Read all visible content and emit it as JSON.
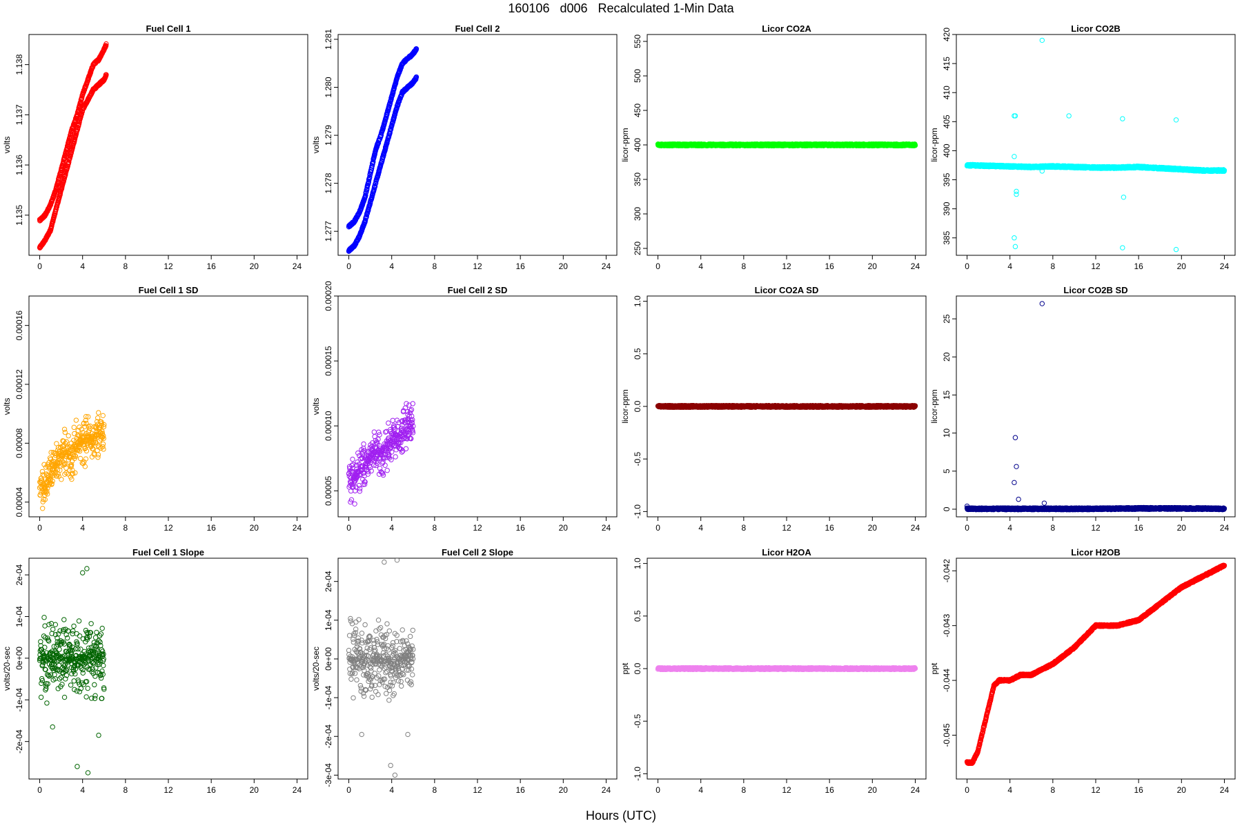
{
  "figure": {
    "title": "160106   d006   Recalculated 1-Min Data",
    "xlabel": "Hours (UTC)"
  },
  "chart_data": [
    {
      "id": "fc1",
      "type": "scatter",
      "title": "Fuel Cell 1",
      "ylabel": "volts",
      "color": "#ff0000",
      "xlim": [
        -1,
        25
      ],
      "ylim": [
        1.1342,
        1.1386
      ],
      "xticks": [
        0,
        4,
        8,
        12,
        16,
        20,
        24
      ],
      "yticks": [
        1.135,
        1.136,
        1.137,
        1.138
      ],
      "ytick_labels": [
        "1.135",
        "1.136",
        "1.137",
        "1.138"
      ],
      "series": [
        {
          "x": [
            0,
            0.5,
            1,
            1.5,
            2,
            2.5,
            3,
            3.5,
            4,
            4.5,
            5,
            5.5,
            6,
            6.2
          ],
          "y": [
            1.13435,
            1.1345,
            1.1347,
            1.1351,
            1.1355,
            1.1359,
            1.1363,
            1.1367,
            1.1371,
            1.1373,
            1.1375,
            1.1376,
            1.1377,
            1.1378
          ]
        },
        {
          "x": [
            0,
            0.5,
            1,
            1.5,
            2,
            2.5,
            3,
            3.5,
            4,
            4.5,
            5,
            5.5,
            6,
            6.2
          ],
          "y": [
            1.1349,
            1.135,
            1.1352,
            1.1355,
            1.1359,
            1.1363,
            1.1367,
            1.137,
            1.1374,
            1.1377,
            1.138,
            1.1381,
            1.1383,
            1.1384
          ]
        }
      ]
    },
    {
      "id": "fc2",
      "type": "scatter",
      "title": "Fuel Cell 2",
      "ylabel": "volts",
      "color": "#0000ff",
      "xlim": [
        -1,
        25
      ],
      "ylim": [
        1.2765,
        1.2811
      ],
      "xticks": [
        0,
        4,
        8,
        12,
        16,
        20,
        24
      ],
      "yticks": [
        1.277,
        1.278,
        1.279,
        1.28,
        1.281
      ],
      "ytick_labels": [
        "1.277",
        "1.278",
        "1.279",
        "1.280",
        "1.281"
      ],
      "series": [
        {
          "x": [
            0,
            0.5,
            1,
            1.5,
            2,
            2.5,
            3,
            3.5,
            4,
            4.5,
            5,
            5.5,
            6,
            6.3
          ],
          "y": [
            1.2766,
            1.2767,
            1.2769,
            1.2772,
            1.2776,
            1.278,
            1.2784,
            1.2788,
            1.2792,
            1.2796,
            1.2799,
            1.28,
            1.2801,
            1.2802
          ]
        },
        {
          "x": [
            0,
            0.5,
            1,
            1.5,
            2,
            2.5,
            3,
            3.5,
            4,
            4.5,
            5,
            5.5,
            6,
            6.3
          ],
          "y": [
            1.2771,
            1.2772,
            1.2774,
            1.2777,
            1.2782,
            1.2787,
            1.279,
            1.2794,
            1.2798,
            1.2802,
            1.2805,
            1.2806,
            1.2807,
            1.2808
          ]
        }
      ]
    },
    {
      "id": "co2a",
      "type": "scatter",
      "title": "Licor CO2A",
      "ylabel": "licor-ppm",
      "color": "#00ff00",
      "xlim": [
        -1,
        25
      ],
      "ylim": [
        240,
        560
      ],
      "xticks": [
        0,
        4,
        8,
        12,
        16,
        20,
        24
      ],
      "yticks": [
        250,
        300,
        350,
        400,
        450,
        500,
        550
      ],
      "ytick_labels": [
        "250",
        "300",
        "350",
        "400",
        "450",
        "500",
        "550"
      ],
      "series": [
        {
          "x": [
            0,
            4,
            8,
            12,
            16,
            20,
            24
          ],
          "y": [
            400,
            400,
            400,
            400,
            400,
            400,
            400
          ]
        }
      ]
    },
    {
      "id": "co2b",
      "type": "scatter",
      "title": "Licor CO2B",
      "ylabel": "licor-ppm",
      "color": "#00ffff",
      "xlim": [
        -1,
        25
      ],
      "ylim": [
        382,
        420
      ],
      "xticks": [
        0,
        4,
        8,
        12,
        16,
        20,
        24
      ],
      "yticks": [
        385,
        390,
        395,
        400,
        405,
        410,
        415,
        420
      ],
      "ytick_labels": [
        "385",
        "390",
        "395",
        "400",
        "405",
        "410",
        "415",
        "420"
      ],
      "series": [
        {
          "x": [
            0,
            2,
            4,
            6,
            8,
            10,
            12,
            14,
            16,
            18,
            20,
            22,
            24
          ],
          "y": [
            397.5,
            397.4,
            397.3,
            397.2,
            397.3,
            397.2,
            397.1,
            397.1,
            397.2,
            397,
            396.8,
            396.6,
            396.6
          ]
        },
        {
          "x": [
            4.4,
            4.5,
            4.6,
            4.4,
            4.6,
            4.4,
            4.5,
            7,
            7,
            9.5,
            14.5,
            14.6,
            14.5,
            19.5,
            19.5
          ],
          "y": [
            406,
            383.5,
            392.5,
            385,
            393,
            399,
            406,
            419,
            396.5,
            406,
            405.5,
            392,
            383.3,
            405.3,
            383
          ]
        }
      ]
    },
    {
      "id": "fc1sd",
      "type": "scatter",
      "title": "Fuel Cell 1 SD",
      "ylabel": "volts",
      "color": "#ffa500",
      "xlim": [
        -1,
        25
      ],
      "ylim": [
        3e-05,
        0.00018
      ],
      "xticks": [
        0,
        4,
        8,
        12,
        16,
        20,
        24
      ],
      "yticks": [
        4e-05,
        8e-05,
        0.00012,
        0.00016
      ],
      "ytick_labels": [
        "0.00004",
        "0.00008",
        "0.00012",
        "0.00016"
      ],
      "series": [
        {
          "x": [
            0,
            0.5,
            1,
            1.5,
            2,
            2.5,
            3,
            3.5,
            4,
            4.5,
            5,
            5.5,
            6
          ],
          "y": [
            5.5e-05,
            5e-05,
            6e-05,
            6.5e-05,
            7e-05,
            7.5e-05,
            7e-05,
            8e-05,
            8e-05,
            8.5e-05,
            8e-05,
            9e-05,
            8.5e-05
          ]
        }
      ]
    },
    {
      "id": "fc2sd",
      "type": "scatter",
      "title": "Fuel Cell 2 SD",
      "ylabel": "volts",
      "color": "#a020f0",
      "xlim": [
        -1,
        25
      ],
      "ylim": [
        3e-05,
        0.0002
      ],
      "xticks": [
        0,
        4,
        8,
        12,
        16,
        20,
        24
      ],
      "yticks": [
        5e-05,
        0.0001,
        0.00015,
        0.0002
      ],
      "ytick_labels": [
        "0.00005",
        "0.00010",
        "0.00015",
        "0.00020"
      ],
      "series": [
        {
          "x": [
            0,
            0.5,
            1,
            1.5,
            2,
            2.5,
            3,
            3.5,
            4,
            4.5,
            5,
            5.5,
            6
          ],
          "y": [
            6e-05,
            6e-05,
            6.5e-05,
            7e-05,
            7.5e-05,
            8e-05,
            8e-05,
            8.5e-05,
            9e-05,
            9e-05,
            9.5e-05,
            0.0001,
            0.0001
          ]
        }
      ]
    },
    {
      "id": "co2asd",
      "type": "scatter",
      "title": "Licor CO2A SD",
      "ylabel": "licor-ppm",
      "color": "#8b0000",
      "xlim": [
        -1,
        25
      ],
      "ylim": [
        -1.05,
        1.05
      ],
      "xticks": [
        0,
        4,
        8,
        12,
        16,
        20,
        24
      ],
      "yticks": [
        -1,
        -0.5,
        0,
        0.5,
        1
      ],
      "ytick_labels": [
        "-1.0",
        "-0.5",
        "0.0",
        "0.5",
        "1.0"
      ],
      "series": [
        {
          "x": [
            0,
            4,
            8,
            12,
            16,
            20,
            24
          ],
          "y": [
            0,
            0,
            0,
            0,
            0,
            0,
            0
          ]
        }
      ]
    },
    {
      "id": "co2bsd",
      "type": "scatter",
      "title": "Licor CO2B SD",
      "ylabel": "licor-ppm",
      "color": "#00008b",
      "xlim": [
        -1,
        25
      ],
      "ylim": [
        -1,
        28
      ],
      "xticks": [
        0,
        4,
        8,
        12,
        16,
        20,
        24
      ],
      "yticks": [
        0,
        5,
        10,
        15,
        20,
        25
      ],
      "ytick_labels": [
        "0",
        "5",
        "10",
        "15",
        "20",
        "25"
      ],
      "series": [
        {
          "x": [
            0,
            4,
            8,
            12,
            16,
            20,
            24
          ],
          "y": [
            0.05,
            0.05,
            0.05,
            0.05,
            0.1,
            0.1,
            0.05
          ]
        },
        {
          "x": [
            0,
            4.4,
            4.5,
            4.6,
            4.8,
            7,
            7.2
          ],
          "y": [
            0.4,
            3.5,
            9.4,
            5.6,
            1.3,
            27,
            0.8
          ]
        }
      ]
    },
    {
      "id": "fc1slope",
      "type": "scatter",
      "title": "Fuel Cell 1 Slope",
      "ylabel": "volts/20-sec",
      "color": "#006400",
      "xlim": [
        -1,
        25
      ],
      "ylim": [
        -0.00029,
        0.00024
      ],
      "xticks": [
        0,
        4,
        8,
        12,
        16,
        20,
        24
      ],
      "yticks": [
        -0.0002,
        -0.0001,
        0,
        0.0001,
        0.0002
      ],
      "ytick_labels": [
        "-2e-04",
        "-1e-04",
        "0e+00",
        "1e-04",
        "2e-04"
      ],
      "series": [
        {
          "x": [
            0,
            0.5,
            1,
            1.5,
            2,
            2.5,
            3,
            3.5,
            4,
            4.5,
            5,
            5.5,
            6
          ],
          "y": [
            0,
            0,
            0,
            0,
            0,
            0,
            0,
            0,
            0,
            0,
            0,
            0,
            0
          ]
        },
        {
          "x": [
            1.2,
            3.5,
            4.5,
            4,
            4.4,
            5.5
          ],
          "y": [
            -0.000165,
            -0.00026,
            -0.000275,
            0.000205,
            0.000215,
            -0.000185
          ]
        }
      ]
    },
    {
      "id": "fc2slope",
      "type": "scatter",
      "title": "Fuel Cell 2 Slope",
      "ylabel": "volts/20-sec",
      "color": "#808080",
      "xlim": [
        -1,
        25
      ],
      "ylim": [
        -0.00031,
        0.00026
      ],
      "xticks": [
        0,
        4,
        8,
        12,
        16,
        20,
        24
      ],
      "yticks": [
        -0.0003,
        -0.0002,
        -0.0001,
        0,
        0.0001,
        0.0002
      ],
      "ytick_labels": [
        "-3e-04",
        "-2e-04",
        "-1e-04",
        "0e+00",
        "1e-04",
        "2e-04"
      ],
      "series": [
        {
          "x": [
            0,
            0.5,
            1,
            1.5,
            2,
            2.5,
            3,
            3.5,
            4,
            4.5,
            5,
            5.5,
            6
          ],
          "y": [
            0,
            0,
            0,
            0,
            0,
            0,
            0,
            0,
            0,
            0,
            0,
            0,
            0
          ]
        },
        {
          "x": [
            1.2,
            3.9,
            4.3,
            3.3,
            4.5,
            5.5
          ],
          "y": [
            -0.000195,
            -0.000275,
            -0.0003,
            0.00025,
            0.000255,
            -0.000195
          ]
        }
      ]
    },
    {
      "id": "h2oa",
      "type": "scatter",
      "title": "Licor H2OA",
      "ylabel": "ppt",
      "color": "#ee82ee",
      "xlim": [
        -1,
        25
      ],
      "ylim": [
        -1.05,
        1.05
      ],
      "xticks": [
        0,
        4,
        8,
        12,
        16,
        20,
        24
      ],
      "yticks": [
        -1,
        -0.5,
        0,
        0.5,
        1
      ],
      "ytick_labels": [
        "-1.0",
        "-0.5",
        "0.0",
        "0.5",
        "1.0"
      ],
      "series": [
        {
          "x": [
            0,
            4,
            8,
            12,
            16,
            20,
            24
          ],
          "y": [
            0,
            0,
            0,
            0,
            0,
            0,
            0
          ]
        }
      ]
    },
    {
      "id": "h2ob",
      "type": "scatter",
      "title": "Licor H2OB",
      "ylabel": "ppt",
      "color": "#ff0000",
      "xlim": [
        -1,
        25
      ],
      "ylim": [
        -0.0458,
        -0.04177
      ],
      "xticks": [
        0,
        4,
        8,
        12,
        16,
        20,
        24
      ],
      "yticks": [
        -0.045,
        -0.044,
        -0.043,
        -0.042
      ],
      "ytick_labels": [
        "-0.045",
        "-0.044",
        "-0.043",
        "-0.042"
      ],
      "series": [
        {
          "x": [
            0,
            0.5,
            1,
            1.5,
            2,
            2.5,
            3,
            4,
            5,
            6,
            7,
            8,
            10,
            12,
            14,
            16,
            18,
            20,
            21,
            22,
            23,
            24
          ],
          "y": [
            -0.0455,
            -0.0455,
            -0.0453,
            -0.0449,
            -0.0445,
            -0.0441,
            -0.044,
            -0.044,
            -0.0439,
            -0.0439,
            -0.0438,
            -0.0437,
            -0.0434,
            -0.043,
            -0.043,
            -0.0429,
            -0.0426,
            -0.0423,
            -0.0422,
            -0.0421,
            -0.042,
            -0.0419
          ]
        }
      ]
    }
  ]
}
